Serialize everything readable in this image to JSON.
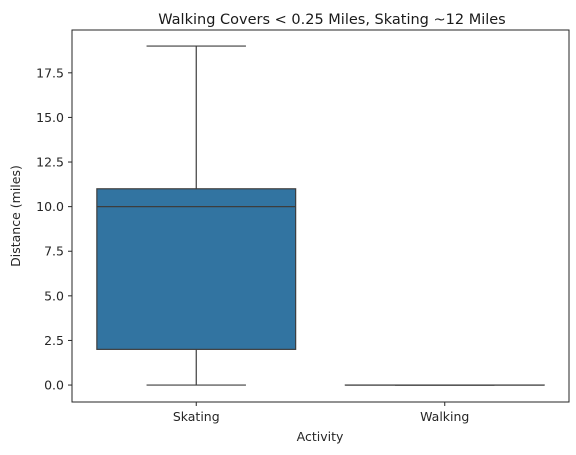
{
  "chart_data": {
    "type": "box",
    "title": "Walking Covers < 0.25 Miles, Skating ~12 Miles",
    "xlabel": "Activity",
    "ylabel": "Distance (miles)",
    "ylim": [
      -0.95,
      19.9
    ],
    "yticks": [
      0.0,
      2.5,
      5.0,
      7.5,
      10.0,
      12.5,
      15.0,
      17.5
    ],
    "ytick_labels": [
      "0.0",
      "2.5",
      "5.0",
      "7.5",
      "10.0",
      "12.5",
      "15.0",
      "17.5"
    ],
    "categories": [
      "Skating",
      "Walking"
    ],
    "boxes": [
      {
        "category": "Skating",
        "min": 0.0,
        "q1": 2.0,
        "median": 10.0,
        "q3": 11.0,
        "max": 19.0,
        "color": "#3274a1"
      },
      {
        "category": "Walking",
        "min": 0.0,
        "q1": 0.0,
        "median": 0.0,
        "q3": 0.0,
        "max": 0.0,
        "color": "#e1812c"
      }
    ],
    "grid": false,
    "line_color": "#3d3d3d"
  }
}
